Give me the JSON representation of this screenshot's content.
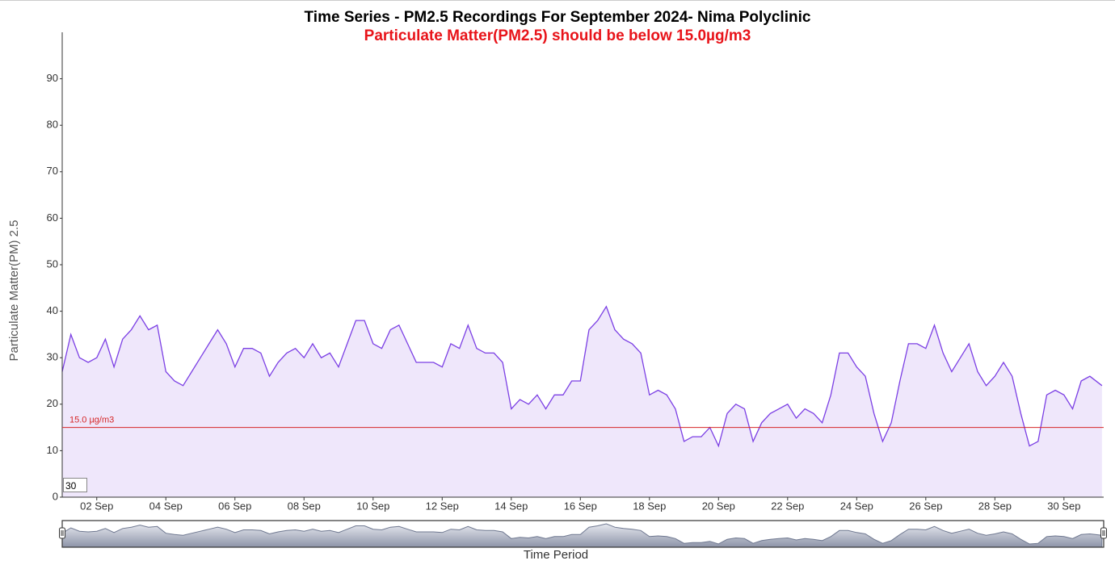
{
  "chart_data": {
    "type": "line",
    "title": "Time Series - PM2.5 Recordings For September 2024- Nima Polyclinic",
    "subtitle": "Particulate Matter(PM2.5) should be below 15.0µg/m3",
    "y_label": "Particulate Matter(PM) 2.5",
    "x_label": "Time Period",
    "zoom_input": "30",
    "threshold": {
      "value": 15,
      "label": "15.0 µg/m3",
      "color": "#d62728"
    },
    "color": "#7b3fe4",
    "fill": "#efe7fb",
    "xlim": [
      1,
      31.15
    ],
    "ylim": [
      0,
      100
    ],
    "yticks": [
      0,
      10,
      20,
      30,
      40,
      50,
      60,
      70,
      80,
      90
    ],
    "xticks": [
      {
        "value": 2,
        "label": "02 Sep"
      },
      {
        "value": 4,
        "label": "04 Sep"
      },
      {
        "value": 6,
        "label": "06 Sep"
      },
      {
        "value": 8,
        "label": "08 Sep"
      },
      {
        "value": 10,
        "label": "10 Sep"
      },
      {
        "value": 12,
        "label": "12 Sep"
      },
      {
        "value": 14,
        "label": "14 Sep"
      },
      {
        "value": 16,
        "label": "16 Sep"
      },
      {
        "value": 18,
        "label": "18 Sep"
      },
      {
        "value": 20,
        "label": "20 Sep"
      },
      {
        "value": 22,
        "label": "22 Sep"
      },
      {
        "value": 24,
        "label": "24 Sep"
      },
      {
        "value": 26,
        "label": "26 Sep"
      },
      {
        "value": 28,
        "label": "28 Sep"
      },
      {
        "value": 30,
        "label": "30 Sep"
      }
    ],
    "x": [
      1,
      1.25,
      1.5,
      1.75,
      2,
      2.25,
      2.5,
      2.75,
      3,
      3.25,
      3.5,
      3.75,
      4,
      4.25,
      4.5,
      4.75,
      5,
      5.25,
      5.5,
      5.75,
      6,
      6.25,
      6.5,
      6.75,
      7,
      7.25,
      7.5,
      7.75,
      8,
      8.25,
      8.5,
      8.75,
      9,
      9.25,
      9.5,
      9.75,
      10,
      10.25,
      10.5,
      10.75,
      11,
      11.25,
      11.5,
      11.75,
      12,
      12.25,
      12.5,
      12.75,
      13,
      13.25,
      13.5,
      13.75,
      14,
      14.25,
      14.5,
      14.75,
      15,
      15.25,
      15.5,
      15.75,
      16,
      16.25,
      16.5,
      16.75,
      17,
      17.25,
      17.5,
      17.75,
      18,
      18.25,
      18.5,
      18.75,
      19,
      19.25,
      19.5,
      19.75,
      20,
      20.25,
      20.5,
      20.75,
      21,
      21.25,
      21.5,
      21.75,
      22,
      22.25,
      22.5,
      22.75,
      23,
      23.25,
      23.5,
      23.75,
      24,
      24.25,
      24.5,
      24.75,
      25,
      25.25,
      25.5,
      25.75,
      26,
      26.25,
      26.5,
      26.75,
      27,
      27.25,
      27.5,
      27.75,
      28,
      28.25,
      28.5,
      28.75,
      29,
      29.25,
      29.5,
      29.75,
      30,
      30.25,
      30.5,
      30.75,
      31.1
    ],
    "values": [
      27,
      35,
      30,
      29,
      30,
      34,
      28,
      34,
      36,
      39,
      36,
      37,
      27,
      25,
      24,
      27,
      30,
      33,
      36,
      33,
      28,
      32,
      32,
      31,
      26,
      29,
      31,
      32,
      30,
      33,
      30,
      31,
      28,
      33,
      38,
      38,
      33,
      32,
      36,
      37,
      33,
      29,
      29,
      29,
      28,
      33,
      32,
      37,
      32,
      31,
      31,
      29,
      19,
      21,
      20,
      22,
      19,
      22,
      22,
      25,
      25,
      36,
      38,
      41,
      36,
      34,
      33,
      31,
      22,
      23,
      22,
      19,
      12,
      13,
      13,
      15,
      11,
      18,
      20,
      19,
      12,
      16,
      18,
      19,
      20,
      17,
      19,
      18,
      16,
      22,
      31,
      31,
      28,
      26,
      18,
      12,
      16,
      25,
      33,
      33,
      32,
      37,
      31,
      27,
      30,
      33,
      27,
      24,
      26,
      29,
      26,
      18,
      11,
      12,
      22,
      23,
      22,
      19,
      25,
      26,
      24
    ]
  }
}
